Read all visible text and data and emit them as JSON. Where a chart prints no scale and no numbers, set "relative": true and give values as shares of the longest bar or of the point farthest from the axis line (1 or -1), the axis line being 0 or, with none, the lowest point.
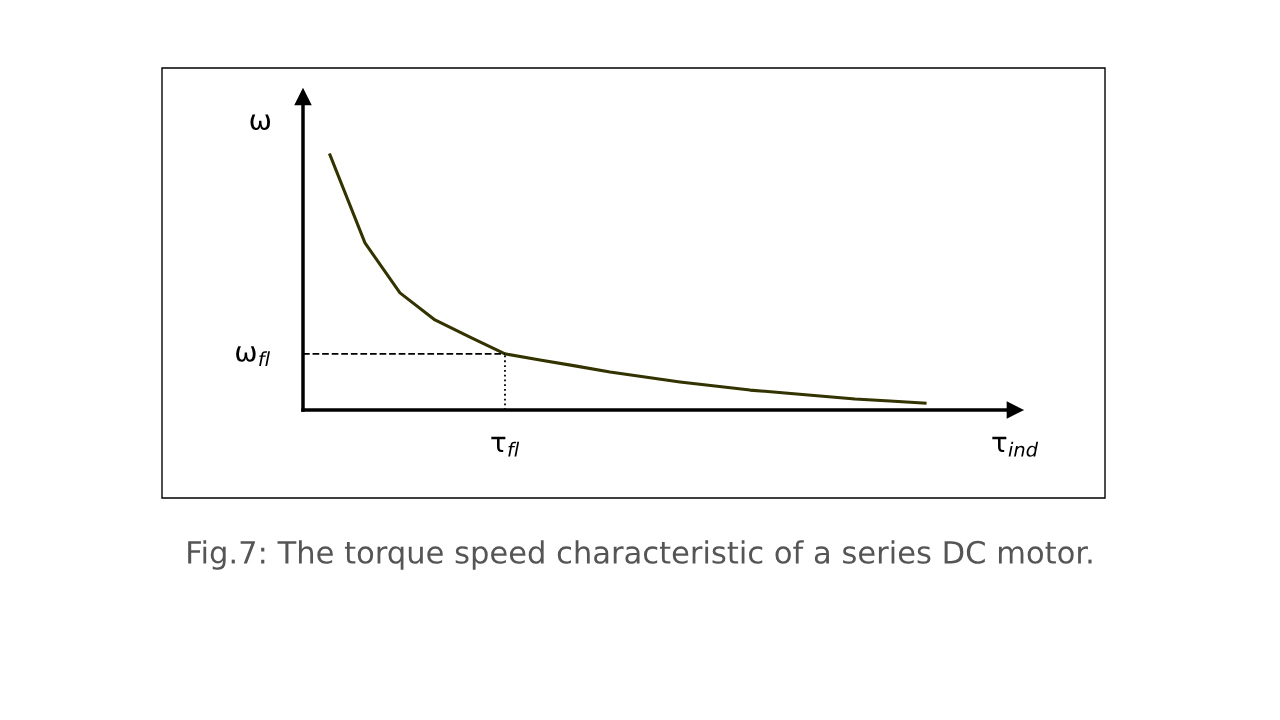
{
  "chart_data": {
    "type": "line",
    "relative": true,
    "xlabel": "τ$_{ind}$",
    "ylabel": "ω",
    "categories": [
      null,
      null,
      null,
      null,
      null,
      null,
      null,
      null,
      null,
      null,
      null,
      null,
      null,
      null,
      null,
      null,
      null,
      null
    ],
    "series": [
      {
        "color": "#333300",
        "values": [
          1.0,
          0.655,
          0.459,
          0.353,
          0.286,
          0.22,
          0.196,
          0.173,
          0.149,
          0.129,
          0.11,
          0.094,
          0.078,
          0.067,
          0.055,
          0.043,
          0.035,
          0.027
        ]
      }
    ],
    "ref_lines": [
      {
        "axis": "y",
        "value": 0.22,
        "label": "ω$_{fl}$",
        "line_style": "dashed",
        "color": "#000000"
      }
    ],
    "annotations": [
      "τ$_{fl}$",
      "Fig.7: The torque speed characteristic of a series DC motor."
    ],
    "legend": false,
    "marker": "none",
    "line_style": "solid"
  }
}
